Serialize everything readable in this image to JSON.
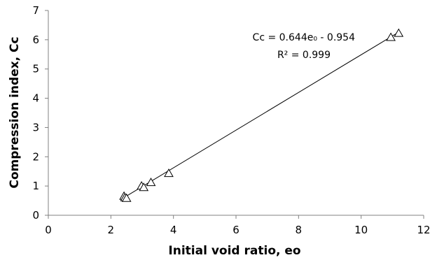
{
  "chart_data": {
    "type": "scatter",
    "title": "",
    "xlabel": "Initial void ratio, eo",
    "ylabel": "Compression index, Cc",
    "xlim": [
      0,
      12
    ],
    "ylim": [
      0,
      7
    ],
    "x_ticks": [
      0,
      2,
      4,
      6,
      8,
      10,
      12
    ],
    "y_ticks": [
      0,
      1,
      2,
      3,
      4,
      5,
      6,
      7
    ],
    "grid": false,
    "legend": "none",
    "marker": "open-triangle",
    "points": [
      {
        "x": 2.42,
        "y": 0.65
      },
      {
        "x": 2.45,
        "y": 0.6
      },
      {
        "x": 2.5,
        "y": 0.58
      },
      {
        "x": 2.98,
        "y": 1.0
      },
      {
        "x": 3.05,
        "y": 0.95
      },
      {
        "x": 3.28,
        "y": 1.12
      },
      {
        "x": 3.85,
        "y": 1.43
      },
      {
        "x": 10.95,
        "y": 6.08
      },
      {
        "x": 11.2,
        "y": 6.22
      }
    ],
    "trendline": {
      "type": "linear",
      "slope": 0.644,
      "intercept": -0.954,
      "x_range": [
        2.4,
        11.2
      ]
    },
    "annotations": {
      "equation": "Cc = 0.644e₀ - 0.954",
      "r_squared": "R² = 0.999"
    },
    "colors": {
      "axis": "#808080",
      "line": "#000000",
      "marker": "#000000"
    }
  }
}
